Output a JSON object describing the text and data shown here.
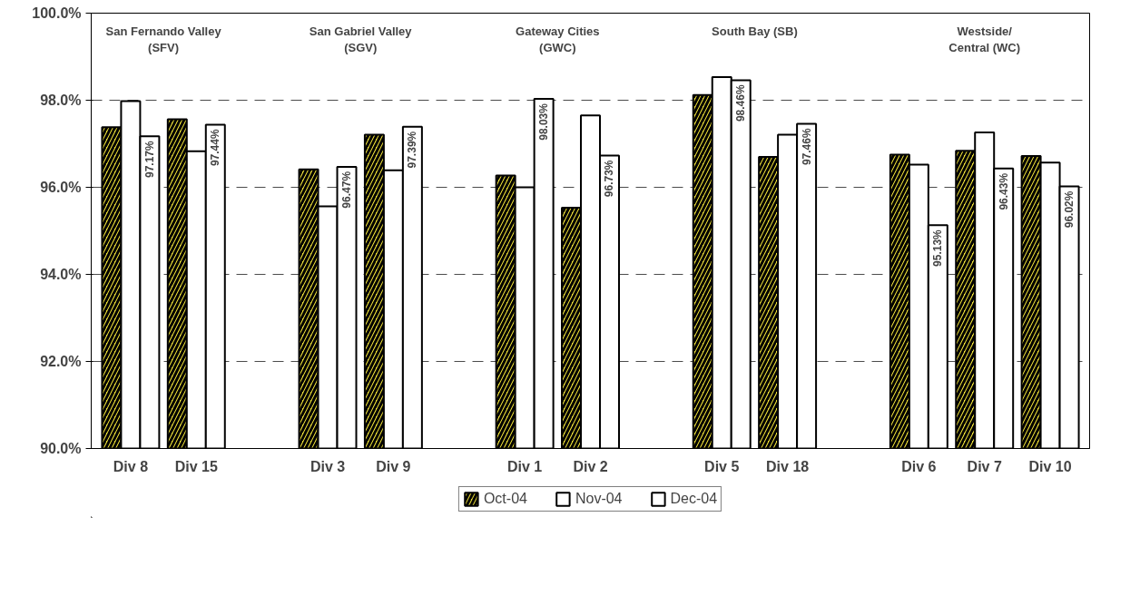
{
  "chart_data": {
    "type": "bar",
    "categories": [
      "Div 8",
      "Div 15",
      null,
      "Div 3",
      "Div 9",
      null,
      "Div 1",
      "Div 2",
      null,
      "Div 5",
      "Div 18",
      null,
      "Div 6",
      "Div 7",
      "Div 10"
    ],
    "series": [
      {
        "name": "Oct-04",
        "color": "#f2e43a",
        "values": [
          97.38,
          97.56,
          null,
          96.41,
          97.21,
          null,
          96.27,
          95.53,
          null,
          98.12,
          96.7,
          null,
          96.75,
          96.84,
          96.72
        ]
      },
      {
        "name": "Nov-04",
        "color": "#ffffff",
        "values": [
          97.98,
          96.83,
          null,
          95.56,
          96.39,
          null,
          96.0,
          97.65,
          null,
          98.53,
          97.21,
          null,
          96.52,
          97.26,
          96.57
        ]
      },
      {
        "name": "Dec-04",
        "color": "#ffffff",
        "values": [
          97.17,
          97.44,
          null,
          96.47,
          97.39,
          null,
          98.03,
          96.73,
          null,
          98.46,
          97.46,
          null,
          95.13,
          96.43,
          96.02
        ],
        "value_labels": [
          "97.17%",
          "97.44%",
          null,
          "96.47%",
          "97.39%",
          null,
          "98.03%",
          "96.73%",
          null,
          "98.46%",
          "97.46%",
          null,
          "95.13%",
          "96.43%",
          "96.02%"
        ]
      }
    ],
    "ylim": [
      90,
      100
    ],
    "yticks": [
      {
        "value": 90,
        "label": "90.0%"
      },
      {
        "value": 92,
        "label": "92.0%"
      },
      {
        "value": 94,
        "label": "94.0%"
      },
      {
        "value": 96,
        "label": "96.0%"
      },
      {
        "value": 98,
        "label": "98.0%"
      },
      {
        "value": 100,
        "label": "100.0%"
      }
    ],
    "annotations": [
      "San Fernando Valley\n(SFV)",
      "San Gabriel Valley\n(SGV)",
      "Gateway Cities\n(GWC)",
      "South Bay (SB)",
      "Westside/\nCentral (WC)"
    ],
    "grid": "y",
    "line_style": "dashed",
    "legend": "bottom"
  }
}
